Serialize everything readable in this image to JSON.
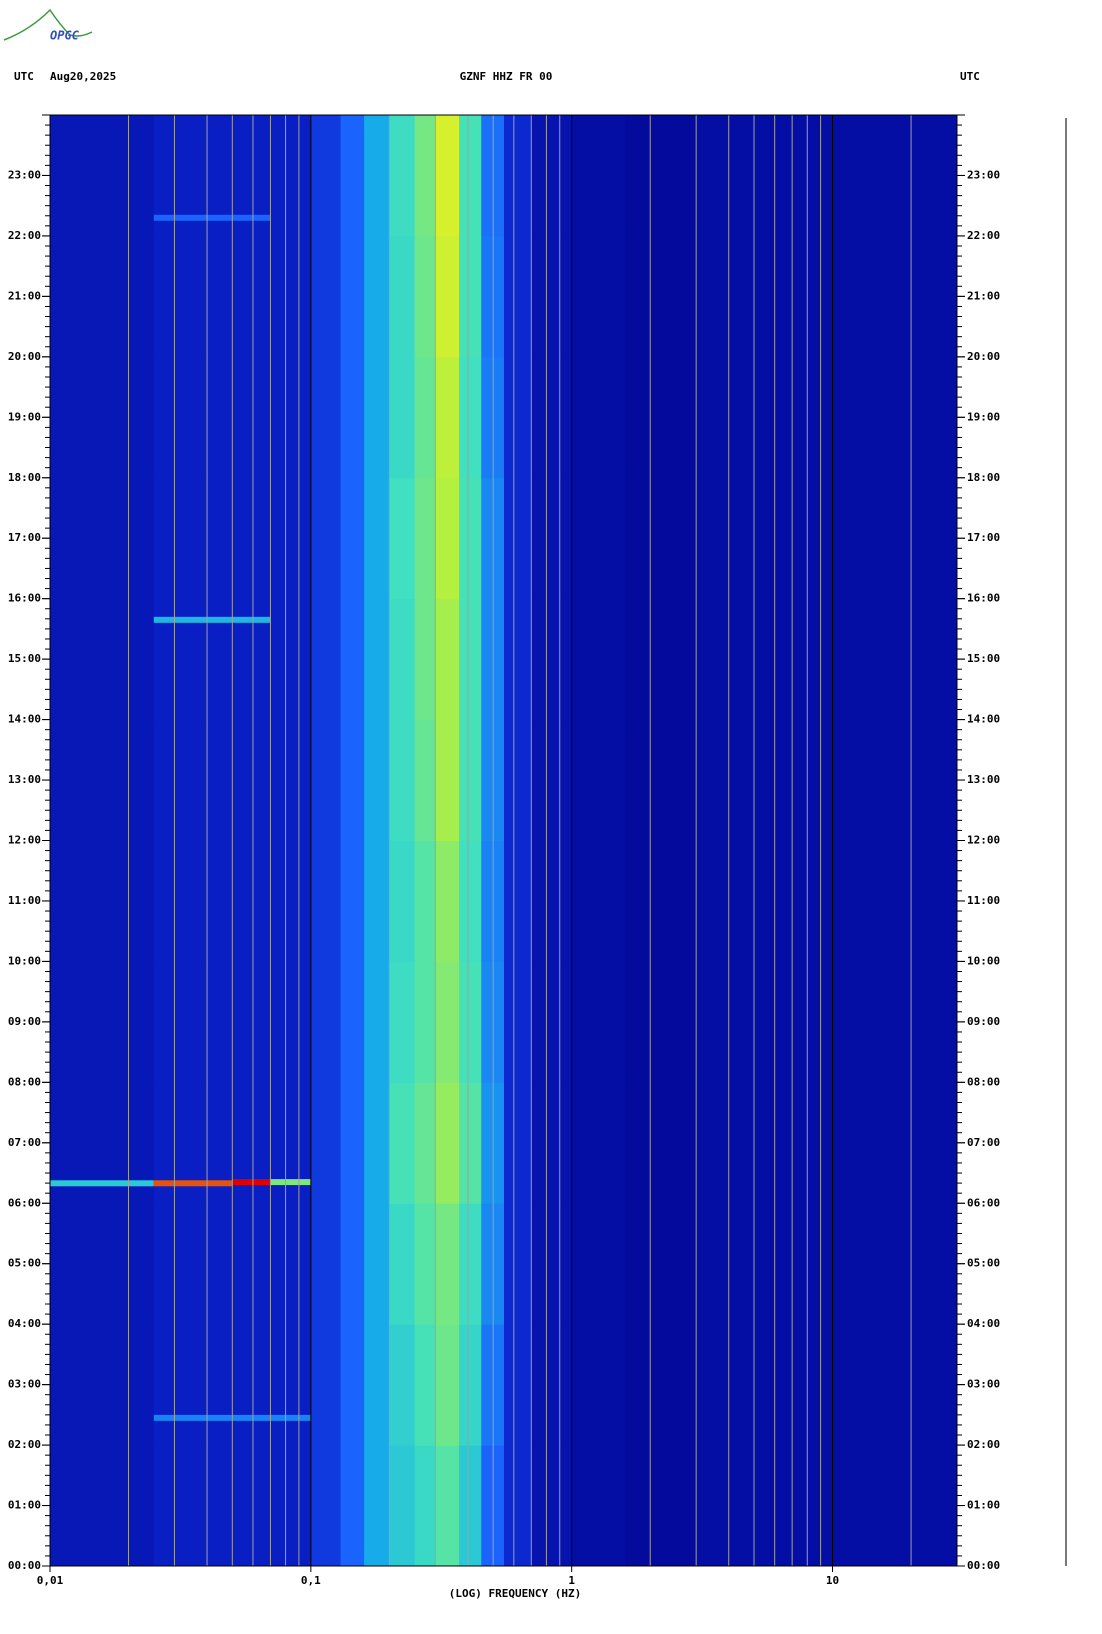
{
  "chart_data": {
    "type": "spectrogram",
    "logo": "OPGC",
    "header_left": "UTC",
    "date": "Aug20,2025",
    "title": "GZNF HHZ FR 00",
    "header_right": "UTC",
    "x_label": "(LOG) FREQUENCY (HZ)",
    "xscale": "log",
    "xlim": [
      0.01,
      30
    ],
    "xticks": [
      {
        "value": 0.01,
        "label": "0,01"
      },
      {
        "value": 0.1,
        "label": "0,1"
      },
      1,
      10
    ],
    "ylim": [
      0,
      24
    ],
    "yticks": [
      {
        "value": 0,
        "label": "00:00"
      },
      {
        "value": 1,
        "label": "01:00"
      },
      {
        "value": 2,
        "label": "02:00"
      },
      {
        "value": 3,
        "label": "03:00"
      },
      {
        "value": 4,
        "label": "04:00"
      },
      {
        "value": 5,
        "label": "05:00"
      },
      {
        "value": 6,
        "label": "06:00"
      },
      {
        "value": 7,
        "label": "07:00"
      },
      {
        "value": 8,
        "label": "08:00"
      },
      {
        "value": 9,
        "label": "09:00"
      },
      {
        "value": 10,
        "label": "10:00"
      },
      {
        "value": 11,
        "label": "11:00"
      },
      {
        "value": 12,
        "label": "12:00"
      },
      {
        "value": 13,
        "label": "13:00"
      },
      {
        "value": 14,
        "label": "14:00"
      },
      {
        "value": 15,
        "label": "15:00"
      },
      {
        "value": 16,
        "label": "16:00"
      },
      {
        "value": 17,
        "label": "17:00"
      },
      {
        "value": 18,
        "label": "18:00"
      },
      {
        "value": 19,
        "label": "19:00"
      },
      {
        "value": 20,
        "label": "20:00"
      },
      {
        "value": 21,
        "label": "21:00"
      },
      {
        "value": 22,
        "label": "22:00"
      },
      {
        "value": 23,
        "label": "23:00"
      }
    ],
    "grid": true,
    "colormap": [
      "#00008b",
      "#0a22c8",
      "#1a5cff",
      "#18b0e8",
      "#40e0c0",
      "#b0f040",
      "#f0f020",
      "#e00000"
    ],
    "bins": [
      0.01,
      0.025,
      0.05,
      0.075,
      0.1,
      0.13,
      0.16,
      0.2,
      0.25,
      0.3,
      0.37,
      0.45,
      0.55,
      0.7,
      1,
      1.6,
      3,
      30
    ],
    "time_edges": [
      0,
      2,
      4,
      6,
      8,
      10,
      12,
      14,
      16,
      18,
      20,
      22,
      24
    ],
    "z": [
      [
        0.1,
        0.13,
        0.13,
        0.13,
        0.2,
        0.3,
        0.42,
        0.5,
        0.55,
        0.6,
        0.5,
        0.3,
        0.16,
        0.08,
        0.06,
        0.04,
        0.06
      ],
      [
        0.1,
        0.13,
        0.13,
        0.13,
        0.2,
        0.3,
        0.42,
        0.52,
        0.58,
        0.63,
        0.54,
        0.33,
        0.16,
        0.08,
        0.06,
        0.04,
        0.06
      ],
      [
        0.1,
        0.13,
        0.13,
        0.13,
        0.2,
        0.3,
        0.42,
        0.55,
        0.6,
        0.64,
        0.56,
        0.36,
        0.16,
        0.08,
        0.06,
        0.04,
        0.06
      ],
      [
        0.1,
        0.13,
        0.13,
        0.13,
        0.2,
        0.3,
        0.42,
        0.58,
        0.62,
        0.68,
        0.6,
        0.38,
        0.16,
        0.08,
        0.06,
        0.04,
        0.06
      ],
      [
        0.1,
        0.13,
        0.13,
        0.13,
        0.2,
        0.3,
        0.42,
        0.56,
        0.6,
        0.66,
        0.58,
        0.36,
        0.16,
        0.08,
        0.06,
        0.04,
        0.06
      ],
      [
        0.1,
        0.13,
        0.13,
        0.13,
        0.2,
        0.3,
        0.42,
        0.55,
        0.6,
        0.67,
        0.57,
        0.35,
        0.16,
        0.08,
        0.06,
        0.04,
        0.06
      ],
      [
        0.1,
        0.13,
        0.13,
        0.13,
        0.2,
        0.3,
        0.42,
        0.56,
        0.62,
        0.7,
        0.58,
        0.36,
        0.16,
        0.08,
        0.06,
        0.04,
        0.06
      ],
      [
        0.1,
        0.13,
        0.13,
        0.13,
        0.2,
        0.3,
        0.42,
        0.56,
        0.63,
        0.7,
        0.58,
        0.36,
        0.16,
        0.08,
        0.06,
        0.04,
        0.06
      ],
      [
        0.1,
        0.13,
        0.13,
        0.13,
        0.2,
        0.3,
        0.42,
        0.57,
        0.63,
        0.72,
        0.58,
        0.36,
        0.16,
        0.08,
        0.06,
        0.04,
        0.06
      ],
      [
        0.1,
        0.13,
        0.13,
        0.13,
        0.2,
        0.3,
        0.42,
        0.55,
        0.62,
        0.74,
        0.57,
        0.34,
        0.16,
        0.08,
        0.06,
        0.04,
        0.06
      ],
      [
        0.1,
        0.13,
        0.13,
        0.13,
        0.2,
        0.3,
        0.42,
        0.55,
        0.63,
        0.78,
        0.58,
        0.33,
        0.16,
        0.08,
        0.06,
        0.04,
        0.06
      ],
      [
        0.1,
        0.13,
        0.13,
        0.13,
        0.2,
        0.3,
        0.42,
        0.56,
        0.64,
        0.8,
        0.58,
        0.32,
        0.16,
        0.08,
        0.06,
        0.04,
        0.06
      ]
    ],
    "events": [
      {
        "time": 6.33,
        "f0": 0.01,
        "f1": 0.025,
        "level": 0.5
      },
      {
        "time": 6.33,
        "f0": 0.025,
        "f1": 0.05,
        "level": 0.95
      },
      {
        "time": 6.35,
        "f0": 0.05,
        "f1": 0.07,
        "level": 1
      },
      {
        "time": 6.35,
        "f0": 0.07,
        "f1": 0.1,
        "level": 0.65
      },
      {
        "time": 15.65,
        "f0": 0.025,
        "f1": 0.07,
        "level": 0.45
      },
      {
        "time": 2.45,
        "f0": 0.025,
        "f1": 0.1,
        "level": 0.35
      },
      {
        "time": 22.3,
        "f0": 0.025,
        "f1": 0.07,
        "level": 0.3
      }
    ]
  }
}
